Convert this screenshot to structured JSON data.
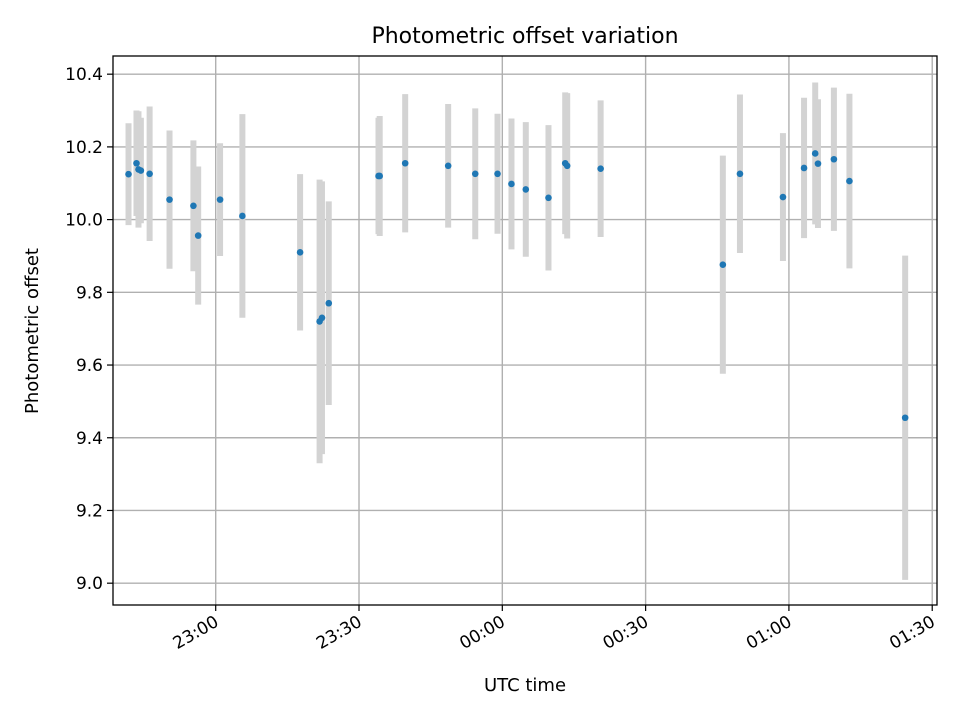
{
  "chart_data": {
    "type": "scatter",
    "title": "Photometric offset variation",
    "xlabel": "UTC time",
    "ylabel": "Photometric offset",
    "x_unit": "UTC time (HH:MM)",
    "xlim": [
      "22:38:30",
      "01:31:00"
    ],
    "ylim": [
      8.94,
      10.45
    ],
    "x_ticks": [
      "23:00",
      "23:30",
      "00:00",
      "00:30",
      "01:00",
      "01:30"
    ],
    "y_ticks": [
      "9.0",
      "9.2",
      "9.4",
      "9.6",
      "9.8",
      "10.0",
      "10.2",
      "10.4"
    ],
    "grid": true,
    "colors": {
      "point": "#1f77b4",
      "errorbar": "#d3d3d3",
      "grid": "#b0b0b0"
    },
    "points": [
      {
        "t": "22:41:45",
        "y": 10.125,
        "err": 0.14
      },
      {
        "t": "22:43:25",
        "y": 10.155,
        "err": 0.145
      },
      {
        "t": "22:43:50",
        "y": 10.138,
        "err": 0.16
      },
      {
        "t": "22:44:20",
        "y": 10.135,
        "err": 0.145
      },
      {
        "t": "22:46:10",
        "y": 10.126,
        "err": 0.185
      },
      {
        "t": "22:50:20",
        "y": 10.055,
        "err": 0.19
      },
      {
        "t": "22:55:20",
        "y": 10.038,
        "err": 0.18
      },
      {
        "t": "22:56:20",
        "y": 9.956,
        "err": 0.19
      },
      {
        "t": "23:00:55",
        "y": 10.055,
        "err": 0.155
      },
      {
        "t": "23:05:35",
        "y": 10.01,
        "err": 0.28
      },
      {
        "t": "23:17:40",
        "y": 9.91,
        "err": 0.215
      },
      {
        "t": "23:21:45",
        "y": 9.72,
        "err": 0.39
      },
      {
        "t": "23:22:15",
        "y": 9.73,
        "err": 0.375
      },
      {
        "t": "23:23:40",
        "y": 9.77,
        "err": 0.28
      },
      {
        "t": "23:34:05",
        "y": 10.12,
        "err": 0.16
      },
      {
        "t": "23:34:20",
        "y": 10.12,
        "err": 0.165
      },
      {
        "t": "23:39:40",
        "y": 10.155,
        "err": 0.19
      },
      {
        "t": "23:48:40",
        "y": 10.148,
        "err": 0.17
      },
      {
        "t": "23:54:20",
        "y": 10.126,
        "err": 0.18
      },
      {
        "t": "23:59:00",
        "y": 10.126,
        "err": 0.165
      },
      {
        "t": "00:01:55",
        "y": 10.098,
        "err": 0.18
      },
      {
        "t": "00:04:55",
        "y": 10.083,
        "err": 0.185
      },
      {
        "t": "00:09:40",
        "y": 10.06,
        "err": 0.2
      },
      {
        "t": "00:13:10",
        "y": 10.155,
        "err": 0.195
      },
      {
        "t": "00:13:35",
        "y": 10.148,
        "err": 0.2
      },
      {
        "t": "00:20:35",
        "y": 10.14,
        "err": 0.188
      },
      {
        "t": "00:46:10",
        "y": 9.876,
        "err": 0.3
      },
      {
        "t": "00:49:45",
        "y": 10.126,
        "err": 0.218
      },
      {
        "t": "00:58:45",
        "y": 10.062,
        "err": 0.176
      },
      {
        "t": "01:03:10",
        "y": 10.142,
        "err": 0.193
      },
      {
        "t": "01:05:30",
        "y": 10.182,
        "err": 0.195
      },
      {
        "t": "01:06:05",
        "y": 10.154,
        "err": 0.177
      },
      {
        "t": "01:09:25",
        "y": 10.166,
        "err": 0.197
      },
      {
        "t": "01:12:40",
        "y": 10.106,
        "err": 0.24
      },
      {
        "t": "01:24:20",
        "y": 9.455,
        "err": 0.446
      }
    ]
  }
}
